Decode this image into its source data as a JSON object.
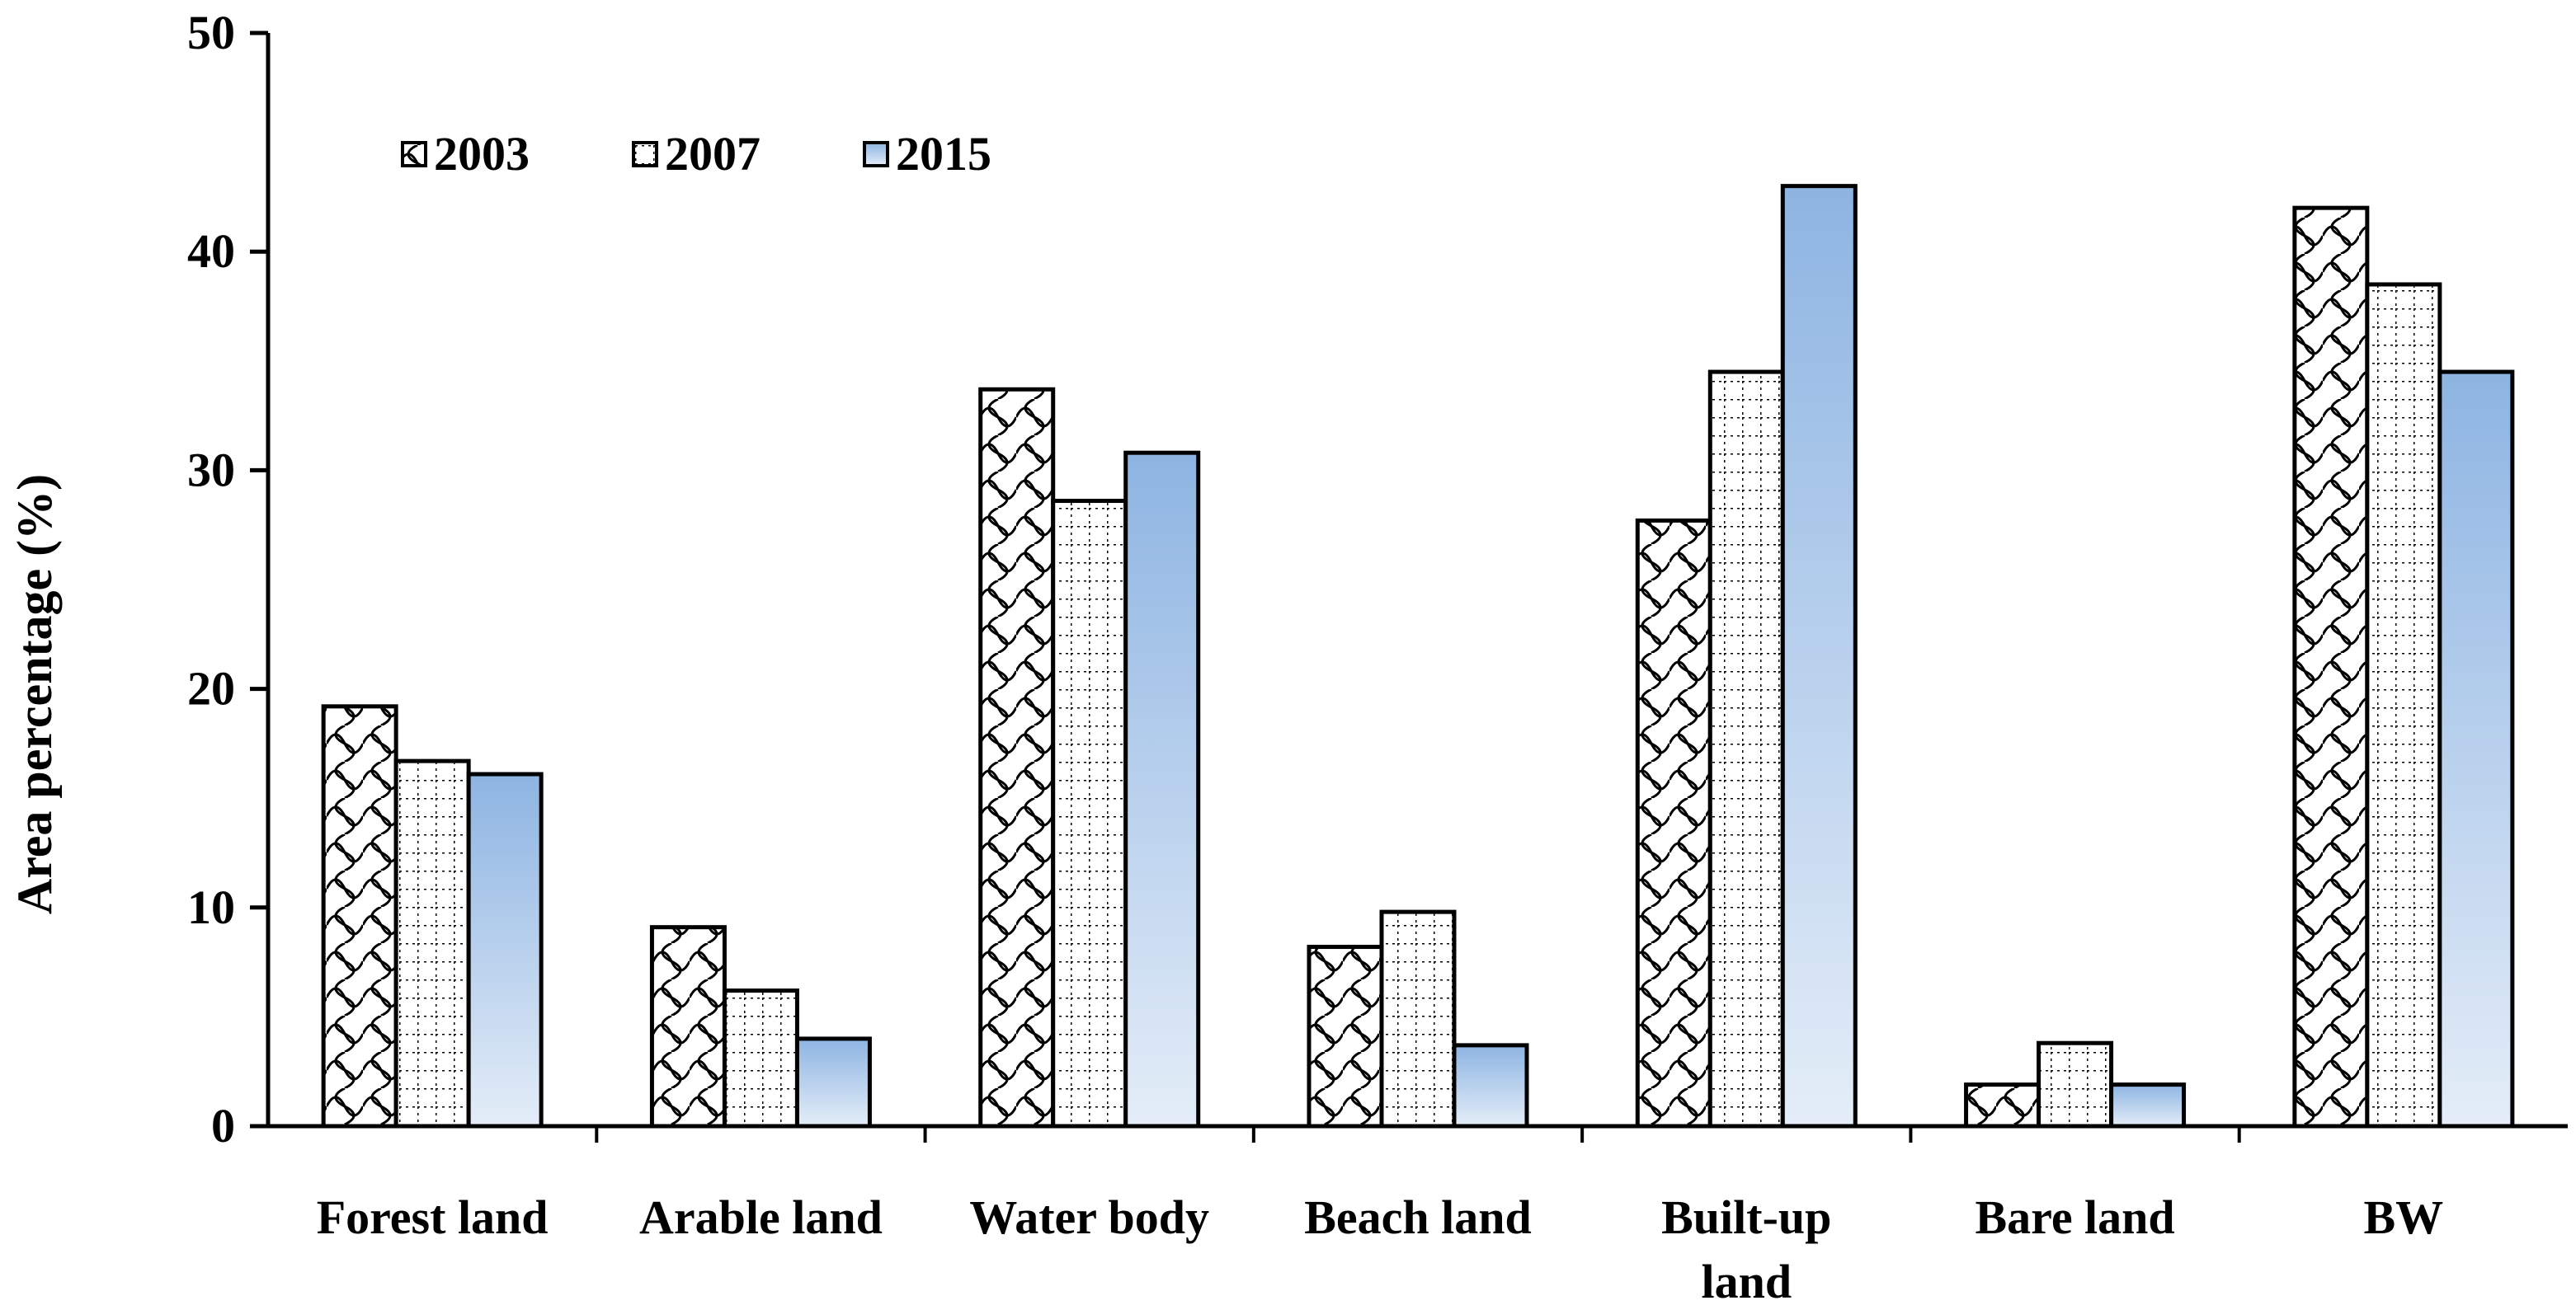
{
  "chart_data": {
    "type": "bar",
    "title": "",
    "xlabel": "",
    "ylabel": "Area  percentage (%)",
    "ylim": [
      0,
      50
    ],
    "yticks": [
      0,
      10,
      20,
      30,
      40,
      50
    ],
    "grid": false,
    "legend_position": "top-left",
    "categories": [
      [
        "Forest land"
      ],
      [
        "Arable land"
      ],
      [
        "Water body"
      ],
      [
        "Beach land"
      ],
      [
        "Built-up",
        "land"
      ],
      [
        "Bare land"
      ],
      [
        "BW"
      ]
    ],
    "series": [
      {
        "name": "2003",
        "pattern": "wave-cross",
        "values": [
          19.2,
          9.1,
          33.7,
          8.2,
          27.7,
          1.9,
          42.0
        ]
      },
      {
        "name": "2007",
        "pattern": "dotted-grid",
        "values": [
          16.7,
          6.2,
          28.6,
          9.8,
          34.5,
          3.8,
          38.5
        ]
      },
      {
        "name": "2015",
        "pattern": "blue-gradient",
        "values": [
          16.1,
          4.0,
          30.8,
          3.7,
          43.0,
          1.9,
          34.5
        ]
      }
    ]
  },
  "colors": {
    "gradient_top": "#8db4e2",
    "gradient_bottom": "#e4edf8",
    "stroke": "#000000"
  }
}
